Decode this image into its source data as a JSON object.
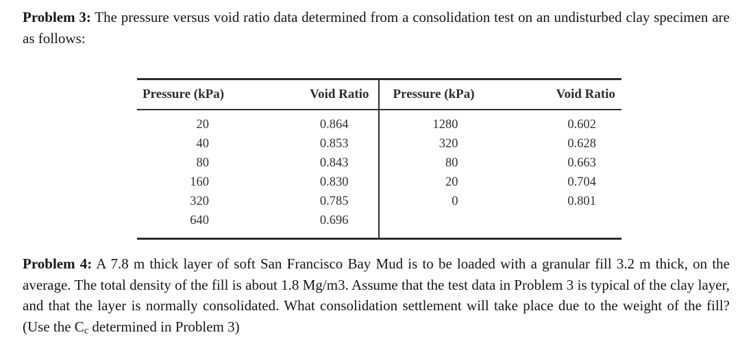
{
  "page": {
    "background": "#ffffff",
    "text_color": "#161616",
    "table_line_color": "#2c2c2c"
  },
  "problem3": {
    "label": "Problem 3:",
    "text": " The pressure versus void ratio data determined from a consolidation test on an undisturbed clay specimen are as follows:"
  },
  "table": {
    "left": {
      "headers": [
        "Pressure (kPa)",
        "Void Ratio"
      ],
      "rows": [
        [
          "20",
          "0.864"
        ],
        [
          "40",
          "0.853"
        ],
        [
          "80",
          "0.843"
        ],
        [
          "160",
          "0.830"
        ],
        [
          "320",
          "0.785"
        ],
        [
          "640",
          "0.696"
        ]
      ]
    },
    "right": {
      "headers": [
        "Pressure (kPa)",
        "Void Ratio"
      ],
      "rows": [
        [
          "1280",
          "0.602"
        ],
        [
          "320",
          "0.628"
        ],
        [
          "80",
          "0.663"
        ],
        [
          "20",
          "0.704"
        ],
        [
          "0",
          "0.801"
        ],
        [
          "",
          ""
        ]
      ]
    }
  },
  "problem4": {
    "label": "Problem 4:",
    "text_before_sub": " A 7.8 m thick layer of soft San Francisco Bay Mud is to be loaded with a granular fill 3.2 m thick, on the average. The total density of the fill is about 1.8 Mg/m3. Assume that the test data in Problem 3 is typical of the clay layer, and that the layer is normally consolidated. What consolidation settlement will take place due to the weight of the fill? (Use the C",
    "subscript": "c",
    "text_after_sub": " determined in Problem 3)"
  }
}
